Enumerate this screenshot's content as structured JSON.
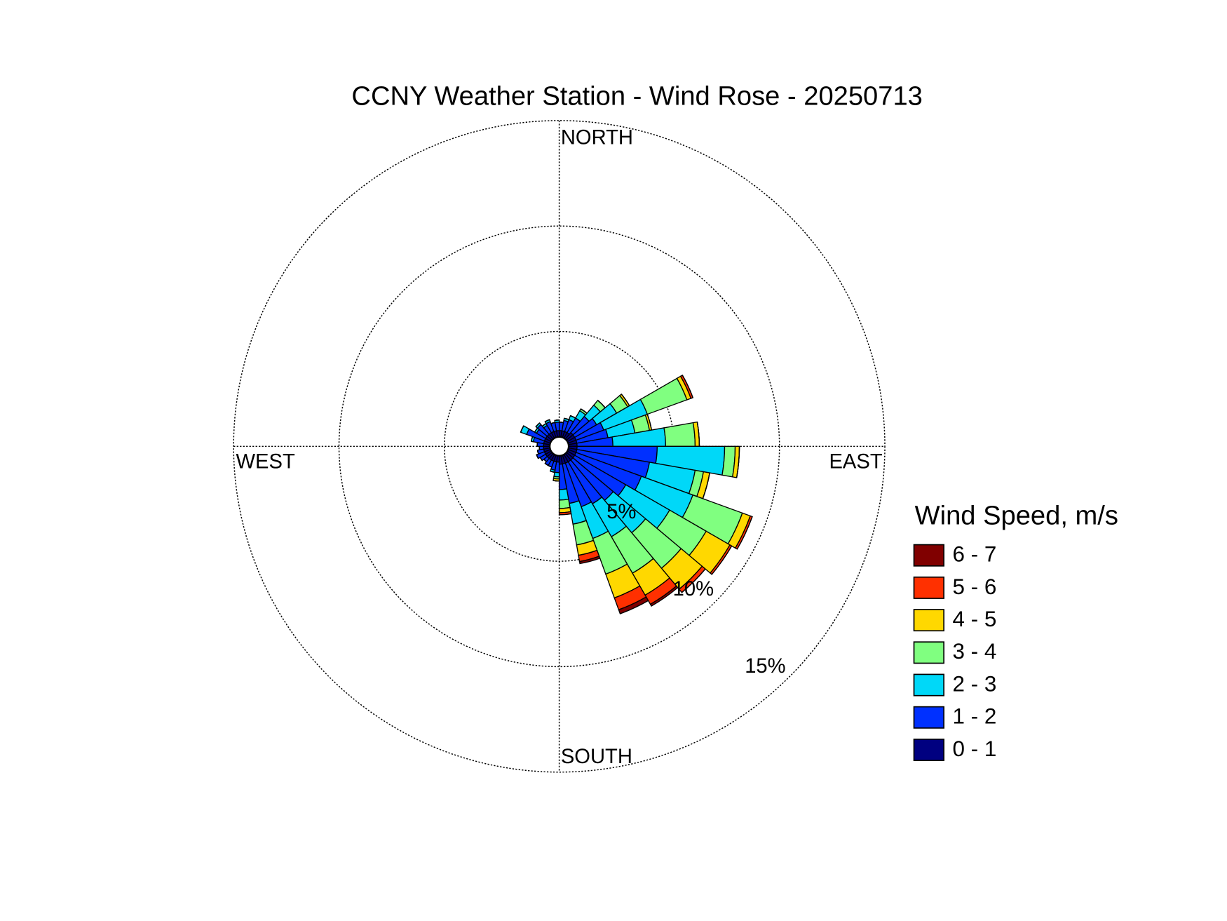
{
  "chart_data": {
    "type": "windrose",
    "title": "CCNY Weather Station - Wind Rose - 20250713",
    "compass": [
      "NORTH",
      "EAST",
      "SOUTH",
      "WEST"
    ],
    "legend_title": "Wind Speed, m/s",
    "rlim": [
      0,
      15
    ],
    "rticks": [
      {
        "value": 5,
        "label": "5%"
      },
      {
        "value": 10,
        "label": "10%"
      },
      {
        "value": 15,
        "label": "15%"
      }
    ],
    "x": [
      5,
      15,
      25,
      35,
      45,
      55,
      65,
      75,
      85,
      95,
      105,
      115,
      125,
      135,
      145,
      155,
      165,
      175,
      185,
      195,
      205,
      215,
      225,
      235,
      245,
      255,
      265,
      275,
      285,
      295,
      305,
      315,
      325,
      335,
      345,
      355
    ],
    "series": [
      {
        "name": "0 - 1",
        "color": "#000080",
        "values": [
          0.3,
          0.3,
          0.3,
          0.3,
          0.4,
          0.4,
          0.4,
          0.4,
          0.4,
          0.4,
          0.4,
          0.4,
          0.4,
          0.4,
          0.4,
          0.4,
          0.4,
          0.4,
          0.3,
          0.3,
          0.3,
          0.3,
          0.3,
          0.3,
          0.3,
          0.3,
          0.3,
          0.3,
          0.3,
          0.3,
          0.3,
          0.3,
          0.3,
          0.3,
          0.3,
          0.3
        ]
      },
      {
        "name": "1 - 2",
        "color": "#0030ff",
        "values": [
          0.4,
          0.5,
          0.6,
          0.8,
          1.0,
          1.2,
          1.4,
          1.5,
          1.7,
          3.8,
          3.5,
          3.3,
          2.8,
          2.5,
          2.3,
          2.2,
          1.9,
          1.2,
          0.5,
          0.4,
          0.3,
          0.3,
          0.2,
          0.3,
          0.4,
          0.3,
          0.2,
          0.3,
          0.5,
          0.9,
          0.5,
          0.6,
          0.4,
          0.5,
          0.4,
          0.4
        ]
      },
      {
        "name": "2 - 3",
        "color": "#00d8f8",
        "values": [
          0,
          0.1,
          0.2,
          0.4,
          0.7,
          1.1,
          2.2,
          1.3,
          2.5,
          3.2,
          2.2,
          2.6,
          2.4,
          2.0,
          1.8,
          1.6,
          1.0,
          0.5,
          0.2,
          0.1,
          0,
          0,
          0,
          0,
          0,
          0,
          0,
          0,
          0.1,
          0.3,
          0.1,
          0.1,
          0.1,
          0.1,
          0,
          0.1
        ]
      },
      {
        "name": "3 - 4",
        "color": "#80ff80",
        "values": [
          0,
          0,
          0,
          0.1,
          0.3,
          0.6,
          2.0,
          0.7,
          1.4,
          0.5,
          0.4,
          2.5,
          2.0,
          2.2,
          2.0,
          1.8,
          1.0,
          0.4,
          0.1,
          0,
          0,
          0,
          0,
          0,
          0,
          0,
          0,
          0,
          0,
          0,
          0,
          0,
          0,
          0,
          0,
          0
        ]
      },
      {
        "name": "4 - 5",
        "color": "#ffd800",
        "values": [
          0,
          0,
          0,
          0,
          0,
          0.1,
          0.2,
          0.1,
          0.2,
          0.2,
          0.3,
          0.4,
          1.3,
          1.3,
          1.2,
          1.2,
          0.5,
          0.2,
          0.1,
          0,
          0,
          0,
          0,
          0,
          0,
          0,
          0,
          0,
          0,
          0,
          0,
          0,
          0,
          0,
          0,
          0
        ]
      },
      {
        "name": "5 - 6",
        "color": "#ff3000",
        "values": [
          0,
          0,
          0,
          0,
          0,
          0,
          0.1,
          0,
          0,
          0,
          0,
          0.1,
          0.1,
          0.2,
          0.5,
          0.6,
          0.3,
          0.1,
          0,
          0,
          0,
          0,
          0,
          0,
          0,
          0,
          0,
          0,
          0,
          0,
          0,
          0,
          0,
          0,
          0,
          0
        ]
      },
      {
        "name": "6 - 7",
        "color": "#800000",
        "values": [
          0,
          0,
          0,
          0,
          0,
          0,
          0,
          0,
          0,
          0,
          0,
          0,
          0,
          0,
          0.1,
          0.2,
          0.1,
          0,
          0,
          0,
          0,
          0,
          0,
          0,
          0,
          0,
          0,
          0,
          0,
          0,
          0,
          0,
          0,
          0,
          0,
          0
        ]
      }
    ]
  }
}
